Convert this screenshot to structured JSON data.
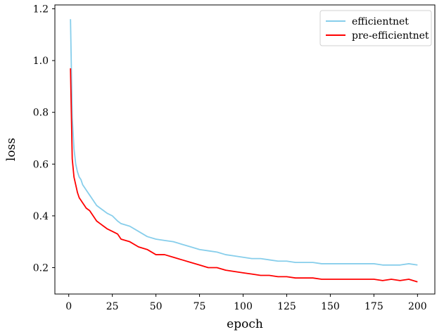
{
  "chart_data": {
    "type": "line",
    "title": "",
    "xlabel": "epoch",
    "ylabel": "loss",
    "xlim": [
      -7.95,
      209.95
    ],
    "ylim": [
      0.098,
      1.215
    ],
    "xticks": [
      0,
      25,
      50,
      75,
      100,
      125,
      150,
      175,
      200
    ],
    "xtick_labels": [
      "0",
      "25",
      "50",
      "75",
      "100",
      "125",
      "150",
      "175",
      "200"
    ],
    "yticks": [
      0.2,
      0.4,
      0.6,
      0.8,
      1.0,
      1.2
    ],
    "ytick_labels": [
      "0.2",
      "0.4",
      "0.6",
      "0.8",
      "1.0",
      "1.2"
    ],
    "grid": false,
    "legend_position": "top-right",
    "series": [
      {
        "name": "efficientnet",
        "color": "#87ceeb",
        "x": [
          1,
          2,
          3,
          4,
          5,
          6,
          7,
          8,
          9,
          10,
          12,
          14,
          16,
          18,
          20,
          22,
          25,
          28,
          30,
          35,
          40,
          45,
          50,
          55,
          60,
          65,
          70,
          75,
          80,
          85,
          90,
          95,
          100,
          105,
          110,
          115,
          120,
          125,
          130,
          135,
          140,
          145,
          150,
          155,
          160,
          165,
          170,
          175,
          180,
          185,
          190,
          195,
          200
        ],
        "y": [
          1.16,
          0.78,
          0.66,
          0.6,
          0.57,
          0.55,
          0.54,
          0.52,
          0.51,
          0.5,
          0.48,
          0.46,
          0.44,
          0.43,
          0.42,
          0.41,
          0.4,
          0.38,
          0.37,
          0.36,
          0.34,
          0.32,
          0.31,
          0.305,
          0.3,
          0.29,
          0.28,
          0.27,
          0.265,
          0.26,
          0.25,
          0.245,
          0.24,
          0.235,
          0.235,
          0.23,
          0.225,
          0.225,
          0.22,
          0.22,
          0.22,
          0.215,
          0.215,
          0.215,
          0.215,
          0.215,
          0.215,
          0.215,
          0.21,
          0.21,
          0.21,
          0.215,
          0.21
        ]
      },
      {
        "name": "pre-efficientnet",
        "color": "#ff0000",
        "x": [
          1,
          2,
          3,
          4,
          5,
          6,
          7,
          8,
          9,
          10,
          12,
          14,
          16,
          18,
          20,
          22,
          25,
          28,
          30,
          35,
          40,
          45,
          50,
          55,
          60,
          65,
          70,
          75,
          80,
          85,
          90,
          95,
          100,
          105,
          110,
          115,
          120,
          125,
          130,
          135,
          140,
          145,
          150,
          155,
          160,
          165,
          170,
          175,
          180,
          185,
          190,
          195,
          200
        ],
        "y": [
          0.97,
          0.62,
          0.55,
          0.52,
          0.49,
          0.47,
          0.46,
          0.45,
          0.44,
          0.43,
          0.42,
          0.4,
          0.38,
          0.37,
          0.36,
          0.35,
          0.34,
          0.33,
          0.31,
          0.3,
          0.28,
          0.27,
          0.25,
          0.25,
          0.24,
          0.23,
          0.22,
          0.21,
          0.2,
          0.2,
          0.19,
          0.185,
          0.18,
          0.175,
          0.17,
          0.17,
          0.165,
          0.165,
          0.16,
          0.16,
          0.16,
          0.155,
          0.155,
          0.155,
          0.155,
          0.155,
          0.155,
          0.155,
          0.15,
          0.155,
          0.15,
          0.155,
          0.145
        ]
      }
    ]
  }
}
